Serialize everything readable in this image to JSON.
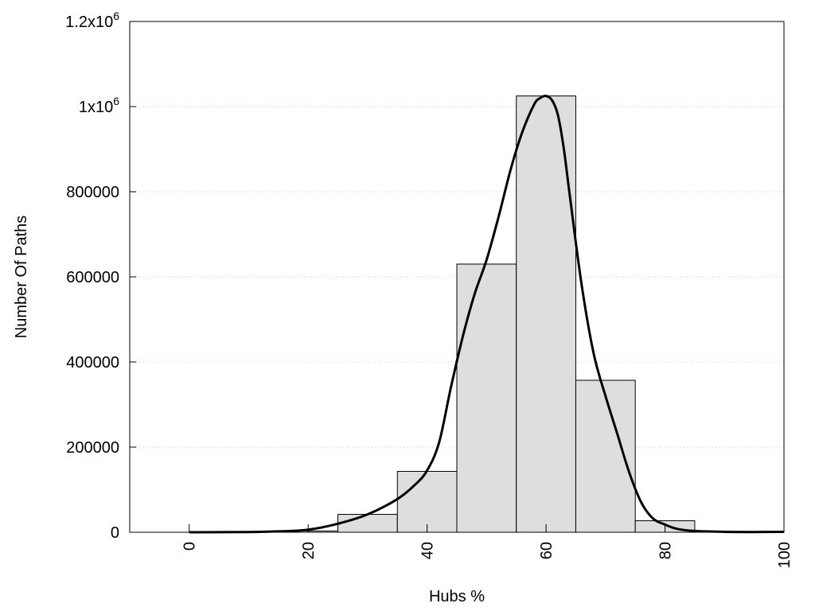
{
  "chart_data": {
    "type": "bar",
    "xlabel": "Hubs %",
    "ylabel": "Number Of Paths",
    "xlim": [
      -10,
      100
    ],
    "ylim": [
      0,
      1200000
    ],
    "grid": true,
    "x_ticks": [
      "0",
      "20",
      "40",
      "60",
      "80",
      "100"
    ],
    "x_tick_values": [
      0,
      20,
      40,
      60,
      80,
      100
    ],
    "y_ticks": [
      {
        "value": 0,
        "base": "0",
        "exp": ""
      },
      {
        "value": 200000,
        "base": "200000",
        "exp": ""
      },
      {
        "value": 400000,
        "base": "400000",
        "exp": ""
      },
      {
        "value": 600000,
        "base": "600000",
        "exp": ""
      },
      {
        "value": 800000,
        "base": "800000",
        "exp": ""
      },
      {
        "value": 1000000,
        "base": "1x10",
        "exp": "6"
      },
      {
        "value": 1200000,
        "base": "1.2x10",
        "exp": "6"
      }
    ],
    "bins": [
      {
        "x0": 0,
        "x1": 5,
        "value": 0
      },
      {
        "x0": 5,
        "x1": 15,
        "value": 0
      },
      {
        "x0": 15,
        "x1": 25,
        "value": 3000
      },
      {
        "x0": 25,
        "x1": 35,
        "value": 42000
      },
      {
        "x0": 35,
        "x1": 45,
        "value": 143000
      },
      {
        "x0": 45,
        "x1": 55,
        "value": 630000
      },
      {
        "x0": 55,
        "x1": 65,
        "value": 1025000
      },
      {
        "x0": 65,
        "x1": 75,
        "value": 357000
      },
      {
        "x0": 75,
        "x1": 85,
        "value": 27000
      },
      {
        "x0": 85,
        "x1": 95,
        "value": 0
      }
    ],
    "curve": {
      "x": [
        0,
        10,
        15,
        20,
        25,
        30,
        35,
        38,
        40,
        42,
        44,
        46,
        48,
        50,
        52,
        54,
        56,
        58,
        59,
        60,
        61,
        62,
        63,
        64,
        66,
        68,
        70,
        72,
        74,
        76,
        78,
        80,
        82,
        85,
        90,
        95,
        100
      ],
      "y": [
        0,
        500,
        2000,
        6000,
        20000,
        42000,
        78000,
        112000,
        145000,
        210000,
        340000,
        460000,
        560000,
        640000,
        740000,
        850000,
        940000,
        1005000,
        1020000,
        1025000,
        1015000,
        980000,
        900000,
        790000,
        580000,
        420000,
        320000,
        230000,
        140000,
        70000,
        32000,
        18000,
        8000,
        3000,
        1000,
        500,
        1000
      ]
    },
    "bar_fill": "#dedede",
    "bar_stroke": "#000000",
    "line_color": "#000000",
    "grid_color": "#c8c8c8"
  }
}
